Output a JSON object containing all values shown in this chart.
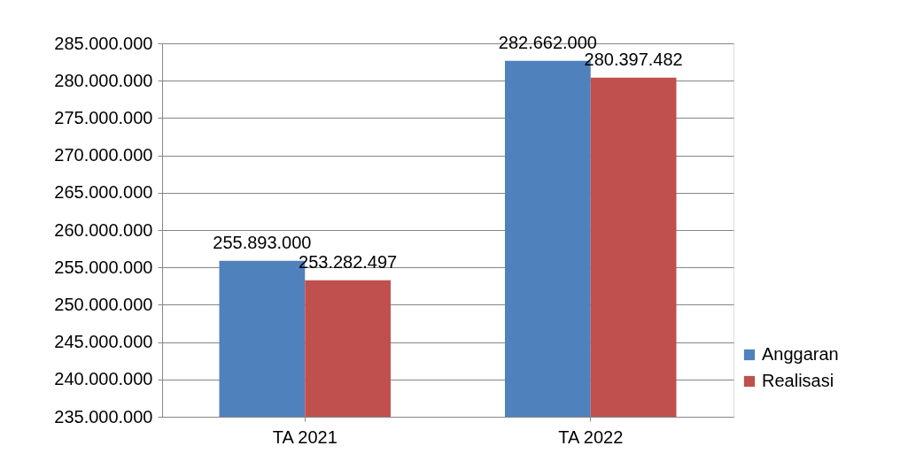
{
  "chart_data": {
    "type": "bar",
    "categories": [
      "TA 2021",
      "TA 2022"
    ],
    "series": [
      {
        "name": "Anggaran",
        "color": "#4f81bd",
        "values": [
          255893000,
          282662000
        ],
        "value_labels": [
          "255.893.000",
          "282.662.000"
        ]
      },
      {
        "name": "Realisasi",
        "color": "#c0504d",
        "values": [
          253282497,
          280397482
        ],
        "value_labels": [
          "253.282.497",
          "280.397.482"
        ]
      }
    ],
    "ylim": [
      235000000,
      285000000
    ],
    "yticks": [
      {
        "value": 235000000,
        "label": "235.000.000"
      },
      {
        "value": 240000000,
        "label": "240.000.000"
      },
      {
        "value": 245000000,
        "label": "245.000.000"
      },
      {
        "value": 250000000,
        "label": "250.000.000"
      },
      {
        "value": 255000000,
        "label": "255.000.000"
      },
      {
        "value": 260000000,
        "label": "260.000.000"
      },
      {
        "value": 265000000,
        "label": "265.000.000"
      },
      {
        "value": 270000000,
        "label": "270.000.000"
      },
      {
        "value": 275000000,
        "label": "275.000.000"
      },
      {
        "value": 280000000,
        "label": "280.000.000"
      },
      {
        "value": 285000000,
        "label": "285.000.000"
      }
    ],
    "grid": "y",
    "legend": "right"
  }
}
